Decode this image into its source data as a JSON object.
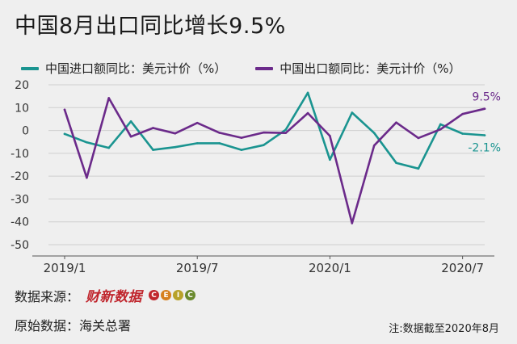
{
  "title": "中国8月出口同比增长9.5%",
  "source_label": "数据来源：",
  "source_brand_caixin": "财新数据",
  "source_brand_ceic": "CEIC",
  "raw_data_label": "原始数据：海关总署",
  "note": "注:数据截至2020年8月",
  "colors": {
    "import": "#1a9490",
    "export": "#6b2a8a",
    "grid": "#cfcfcf",
    "axis": "#555555"
  },
  "chart_data": {
    "type": "line",
    "title": "中国8月出口同比增长9.5%",
    "xlabel": "",
    "ylabel": "",
    "ylim": [
      -50,
      20
    ],
    "yticks": [
      20,
      10,
      0,
      -10,
      -20,
      -30,
      -40,
      -50
    ],
    "x": [
      "2019/1",
      "2019/2",
      "2019/3",
      "2019/4",
      "2019/5",
      "2019/6",
      "2019/7",
      "2019/8",
      "2019/9",
      "2019/10",
      "2019/11",
      "2019/12",
      "2020/1",
      "2020/2",
      "2020/3",
      "2020/4",
      "2020/5",
      "2020/6",
      "2020/7",
      "2020/8"
    ],
    "xtick_labels": [
      "2019/1",
      "2019/7",
      "2020/1",
      "2020/7"
    ],
    "grid": true,
    "legend_position": "top",
    "series": [
      {
        "name": "中国进口额同比：美元计价（%）",
        "color": "#1a9490",
        "values": [
          -1.5,
          -5.2,
          -7.6,
          4.0,
          -8.5,
          -7.3,
          -5.6,
          -5.6,
          -8.5,
          -6.4,
          0.3,
          16.5,
          -12.8,
          7.8,
          -1.1,
          -14.2,
          -16.7,
          2.7,
          -1.4,
          -2.1
        ],
        "end_label": "-2.1%"
      },
      {
        "name": "中国出口额同比：美元计价（%）",
        "color": "#6b2a8a",
        "values": [
          9.1,
          -20.7,
          14.2,
          -2.7,
          1.1,
          -1.3,
          3.3,
          -1.0,
          -3.2,
          -0.9,
          -1.1,
          7.6,
          -2.4,
          -40.6,
          -6.6,
          3.5,
          -3.3,
          0.5,
          7.2,
          9.5
        ],
        "end_label": "9.5%"
      }
    ]
  }
}
